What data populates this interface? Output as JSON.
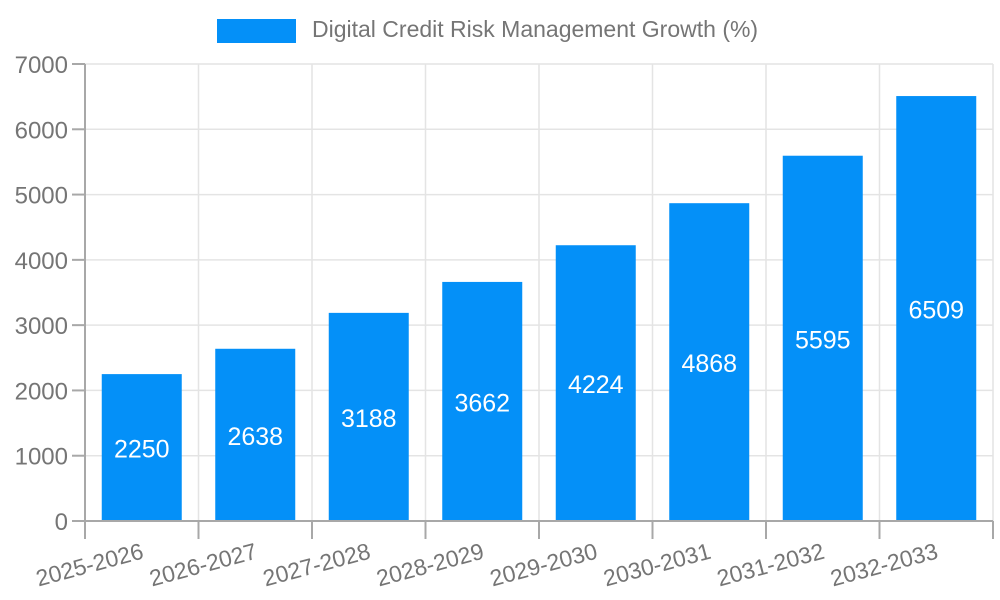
{
  "chart_data": {
    "type": "bar",
    "title": "Digital Credit Risk Management Growth (%)",
    "categories": [
      "2025-2026",
      "2026-2027",
      "2027-2028",
      "2028-2029",
      "2029-2030",
      "2030-2031",
      "2031-2032",
      "2032-2033"
    ],
    "values": [
      2250,
      2638,
      3188,
      3662,
      4224,
      4868,
      5595,
      6509
    ],
    "xlabel": "",
    "ylabel": "",
    "ylim": [
      0,
      7000
    ],
    "yticks": [
      0,
      1000,
      2000,
      3000,
      4000,
      5000,
      6000,
      7000
    ],
    "grid": true,
    "legend_position": "top-center",
    "bar_value_labels": "centered-inside-white",
    "x_label_rotation_deg": -15
  },
  "legend": {
    "label": "Digital Credit Risk Management Growth (%)"
  },
  "colors": {
    "bar": "#0490f8",
    "text": "#757575",
    "grid": "#e4e4e4",
    "axis": "#a8a8a8",
    "value_label": "#ffffff",
    "background": "#ffffff"
  }
}
